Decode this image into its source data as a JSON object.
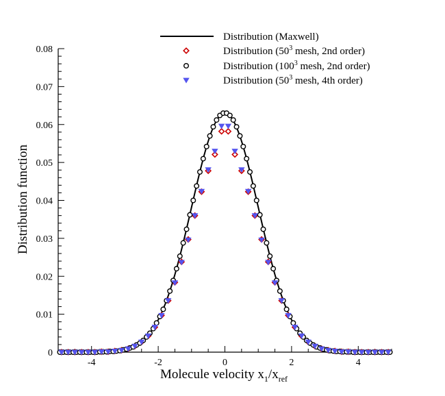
{
  "chart_data": {
    "type": "scatter",
    "title": "",
    "xlabel": {
      "main": "Molecule velocity x",
      "sub1": "1",
      "mid": "/x",
      "sub2": "ref"
    },
    "ylabel": "Distribution function",
    "xlim": [
      -5,
      5
    ],
    "ylim": [
      0,
      0.08
    ],
    "xticks": [
      -4,
      -2,
      0,
      2,
      4
    ],
    "xtick_labels": [
      "-4",
      "-2",
      "0",
      "2",
      "4"
    ],
    "yticks": [
      0,
      0.01,
      0.02,
      0.03,
      0.04,
      0.05,
      0.06,
      0.07,
      0.08
    ],
    "ytick_labels": [
      "0",
      "0.01",
      "0.02",
      "0.03",
      "0.04",
      "0.05",
      "0.06",
      "0.07",
      "0.08"
    ],
    "legend_position": "top-right",
    "maxwell": {
      "peak": 0.063,
      "sigma": 1.0
    },
    "series": [
      {
        "name": "maxwell",
        "label_pre": "Distribution (Maxwell)",
        "label_sup": "",
        "label_post": "",
        "kind": "line",
        "color": "#000000"
      },
      {
        "name": "mesh50-2nd",
        "label_pre": "Distribution (50",
        "label_sup": "3",
        "label_post": " mesh, 2nd order)",
        "kind": "diamond",
        "color": "#cc0000",
        "x": [
          -4.9,
          -4.7,
          -4.5,
          -4.3,
          -4.1,
          -3.9,
          -3.7,
          -3.5,
          -3.3,
          -3.1,
          -2.9,
          -2.7,
          -2.5,
          -2.3,
          -2.1,
          -1.9,
          -1.7,
          -1.5,
          -1.3,
          -1.1,
          -0.9,
          -0.7,
          -0.5,
          -0.3,
          -0.1,
          0.1,
          0.3,
          0.5,
          0.7,
          0.9,
          1.1,
          1.3,
          1.5,
          1.7,
          1.9,
          2.1,
          2.3,
          2.5,
          2.7,
          2.9,
          3.1,
          3.3,
          3.5,
          3.7,
          3.9,
          4.1,
          4.3,
          4.5,
          4.7,
          4.9
        ],
        "y": [
          0.0,
          0.0,
          0.0,
          0.0,
          0.0,
          0.0,
          0.0001,
          0.0001,
          0.0003,
          0.0005,
          0.0009,
          0.0016,
          0.0027,
          0.0043,
          0.0066,
          0.0097,
          0.0136,
          0.0184,
          0.0238,
          0.0297,
          0.036,
          0.0423,
          0.0478,
          0.0521,
          0.0582,
          0.0582,
          0.0521,
          0.0478,
          0.0423,
          0.036,
          0.0297,
          0.0238,
          0.0184,
          0.0136,
          0.0097,
          0.0066,
          0.0043,
          0.0027,
          0.0016,
          0.0009,
          0.0005,
          0.0003,
          0.0001,
          0.0001,
          0.0,
          0.0,
          0.0,
          0.0,
          0.0,
          0.0
        ]
      },
      {
        "name": "mesh100-2nd",
        "label_pre": "Distribution (100",
        "label_sup": "3",
        "label_post": " mesh, 2nd order)",
        "kind": "circle",
        "color": "#000000",
        "x": [
          -4.95,
          -4.85,
          -4.75,
          -4.65,
          -4.55,
          -4.45,
          -4.35,
          -4.25,
          -4.15,
          -4.05,
          -3.95,
          -3.85,
          -3.75,
          -3.65,
          -3.55,
          -3.45,
          -3.35,
          -3.25,
          -3.15,
          -3.05,
          -2.95,
          -2.85,
          -2.75,
          -2.65,
          -2.55,
          -2.45,
          -2.35,
          -2.25,
          -2.15,
          -2.05,
          -1.95,
          -1.85,
          -1.75,
          -1.65,
          -1.55,
          -1.45,
          -1.35,
          -1.25,
          -1.15,
          -1.05,
          -0.95,
          -0.85,
          -0.75,
          -0.65,
          -0.55,
          -0.45,
          -0.35,
          -0.25,
          -0.15,
          -0.05,
          0.05,
          0.15,
          0.25,
          0.35,
          0.45,
          0.55,
          0.65,
          0.75,
          0.85,
          0.95,
          1.05,
          1.15,
          1.25,
          1.35,
          1.45,
          1.55,
          1.65,
          1.75,
          1.85,
          1.95,
          2.05,
          2.15,
          2.25,
          2.35,
          2.45,
          2.55,
          2.65,
          2.75,
          2.85,
          2.95,
          3.05,
          3.15,
          3.25,
          3.35,
          3.45,
          3.55,
          3.65,
          3.75,
          3.85,
          3.95,
          4.05,
          4.15,
          4.25,
          4.35,
          4.45,
          4.55,
          4.65,
          4.75,
          4.85,
          4.95
        ],
        "y": [
          0.0,
          0.0,
          0.0,
          0.0,
          0.0,
          0.0,
          0.0,
          0.0,
          0.0,
          0.0,
          0.0,
          0.0,
          0.0001,
          0.0001,
          0.0001,
          0.0002,
          0.0002,
          0.0003,
          0.0004,
          0.0006,
          0.0008,
          0.0011,
          0.0014,
          0.0019,
          0.0024,
          0.0031,
          0.004,
          0.005,
          0.0062,
          0.0077,
          0.0094,
          0.0113,
          0.0136,
          0.0161,
          0.0189,
          0.022,
          0.0253,
          0.0288,
          0.0324,
          0.0362,
          0.04,
          0.0438,
          0.0475,
          0.051,
          0.0542,
          0.057,
          0.0594,
          0.0612,
          0.0624,
          0.063,
          0.063,
          0.0624,
          0.0612,
          0.0594,
          0.057,
          0.0542,
          0.051,
          0.0475,
          0.0438,
          0.04,
          0.0362,
          0.0324,
          0.0288,
          0.0253,
          0.022,
          0.0189,
          0.0161,
          0.0136,
          0.0113,
          0.0094,
          0.0077,
          0.0062,
          0.005,
          0.004,
          0.0031,
          0.0024,
          0.0019,
          0.0014,
          0.0011,
          0.0008,
          0.0006,
          0.0004,
          0.0003,
          0.0002,
          0.0002,
          0.0001,
          0.0001,
          0.0001,
          0.0,
          0.0,
          0.0,
          0.0,
          0.0,
          0.0,
          0.0,
          0.0,
          0.0,
          0.0,
          0.0,
          0.0
        ]
      },
      {
        "name": "mesh50-4th",
        "label_pre": "Distribution (50",
        "label_sup": "3",
        "label_post": " mesh, 4th order)",
        "kind": "triangle",
        "color": "#5555ee",
        "x": [
          -4.9,
          -4.7,
          -4.5,
          -4.3,
          -4.1,
          -3.9,
          -3.7,
          -3.5,
          -3.3,
          -3.1,
          -2.9,
          -2.7,
          -2.5,
          -2.3,
          -2.1,
          -1.9,
          -1.7,
          -1.5,
          -1.3,
          -1.1,
          -0.9,
          -0.7,
          -0.5,
          -0.3,
          -0.1,
          0.1,
          0.3,
          0.5,
          0.7,
          0.9,
          1.1,
          1.3,
          1.5,
          1.7,
          1.9,
          2.1,
          2.3,
          2.5,
          2.7,
          2.9,
          3.1,
          3.3,
          3.5,
          3.7,
          3.9,
          4.1,
          4.3,
          4.5,
          4.7,
          4.9
        ],
        "y": [
          0.0,
          0.0,
          0.0,
          0.0,
          0.0,
          0.0,
          0.0001,
          0.0001,
          0.0003,
          0.0005,
          0.0009,
          0.0016,
          0.0027,
          0.0043,
          0.0066,
          0.0097,
          0.0136,
          0.0183,
          0.0237,
          0.0296,
          0.036,
          0.0424,
          0.0481,
          0.053,
          0.0596,
          0.0596,
          0.053,
          0.0481,
          0.0424,
          0.036,
          0.0296,
          0.0237,
          0.0183,
          0.0136,
          0.0097,
          0.0066,
          0.0043,
          0.0027,
          0.0016,
          0.0009,
          0.0005,
          0.0003,
          0.0001,
          0.0001,
          0.0,
          0.0,
          0.0,
          0.0,
          0.0,
          0.0
        ]
      }
    ]
  }
}
